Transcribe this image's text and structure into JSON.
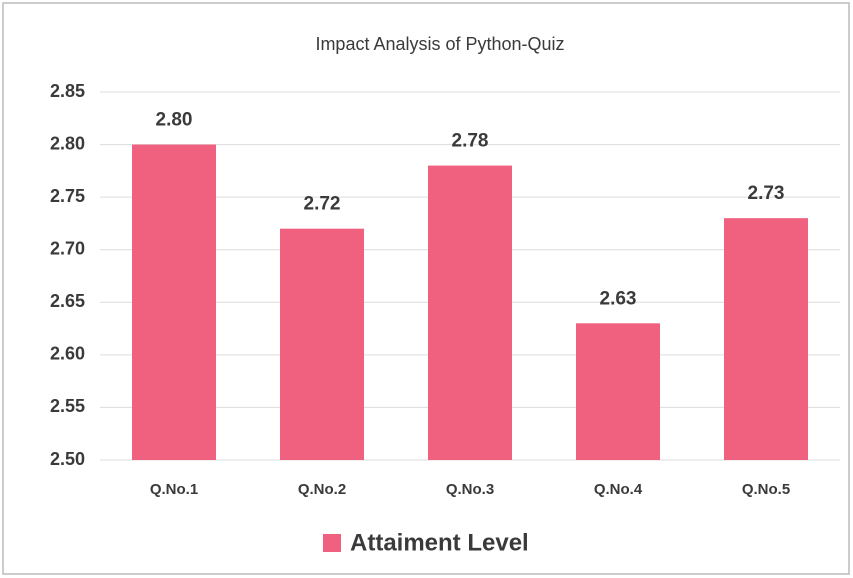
{
  "chart_data": {
    "type": "bar",
    "title": "Impact Analysis of Python-Quiz",
    "categories": [
      "Q.No.1",
      "Q.No.2",
      "Q.No.3",
      "Q.No.4",
      "Q.No.5"
    ],
    "series": [
      {
        "name": "Attaiment Level",
        "color": "#f0607f",
        "values": [
          2.8,
          2.72,
          2.78,
          2.63,
          2.73
        ],
        "value_labels": [
          "2.80",
          "2.72",
          "2.78",
          "2.63",
          "2.73"
        ]
      }
    ],
    "ylim": [
      2.5,
      2.85
    ],
    "yticks": [
      {
        "value": 2.5,
        "label": "2.50"
      },
      2.55,
      {
        "value": 2.6,
        "label": "2.60"
      },
      2.65,
      {
        "value": 2.7,
        "label": "2.70"
      },
      2.75,
      {
        "value": 2.8,
        "label": "2.80"
      },
      2.85
    ],
    "grid": true,
    "legend": "bottom"
  }
}
